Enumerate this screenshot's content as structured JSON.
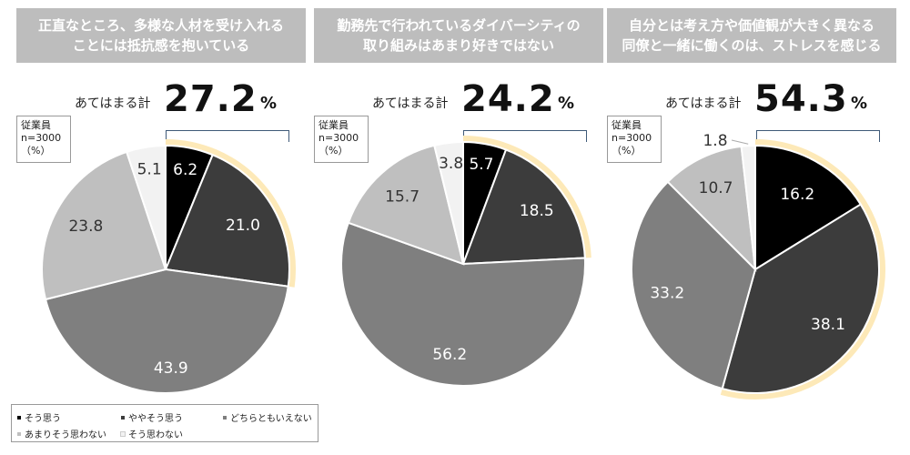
{
  "sample_label_line1": "従業員",
  "sample_label_line2": "n=3000",
  "sample_label_line3": "（%）",
  "agree_label": "あてはまる計",
  "percent_unit": "%",
  "colors": {
    "strongly_agree": "#000000",
    "somewhat_agree": "#3c3c3c",
    "neutral": "#7f7f7f",
    "somewhat_disagree": "#bfbfbf",
    "disagree": "#f2f2f2",
    "highlight_arc": "#fde9b8",
    "header_bg": "#bdbdbd"
  },
  "legend": [
    {
      "label": "そう思う",
      "color": "#000000"
    },
    {
      "label": "ややそう思う",
      "color": "#3c3c3c"
    },
    {
      "label": "どちらともいえない",
      "color": "#7f7f7f"
    },
    {
      "label": "あまりそう思わない",
      "color": "#bfbfbf"
    },
    {
      "label": "そう思わない",
      "color": "#f2f2f2"
    }
  ],
  "chart_data": [
    {
      "type": "pie",
      "title_line1": "正直なところ、多様な人材を受け入れる",
      "title_line2": "ことには抵抗感を抱いている",
      "agree_total": "27.2",
      "categories": [
        "そう思う",
        "ややそう思う",
        "どちらともいえない",
        "あまりそう思わない",
        "そう思わない"
      ],
      "values": [
        6.2,
        21.0,
        43.9,
        23.8,
        5.1
      ],
      "value_labels": [
        "6.2",
        "21.0",
        "43.9",
        "23.8",
        "5.1"
      ]
    },
    {
      "type": "pie",
      "title_line1": "勤務先で行われているダイバーシティの",
      "title_line2": "取り組みはあまり好きではない",
      "agree_total": "24.2",
      "categories": [
        "そう思う",
        "ややそう思う",
        "どちらともいえない",
        "あまりそう思わない",
        "そう思わない"
      ],
      "values": [
        5.7,
        18.5,
        56.2,
        15.7,
        3.8
      ],
      "value_labels": [
        "5.7",
        "18.5",
        "56.2",
        "15.7",
        "3.8"
      ]
    },
    {
      "type": "pie",
      "title_line1": "自分とは考え方や価値観が大きく異なる",
      "title_line2": "同僚と一緒に働くのは、ストレスを感じる",
      "agree_total": "54.3",
      "categories": [
        "そう思う",
        "ややそう思う",
        "どちらともいえない",
        "あまりそう思わない",
        "そう思わない"
      ],
      "values": [
        16.2,
        38.1,
        33.2,
        10.7,
        1.8
      ],
      "value_labels": [
        "16.2",
        "38.1",
        "33.2",
        "10.7",
        "1.8"
      ]
    }
  ]
}
